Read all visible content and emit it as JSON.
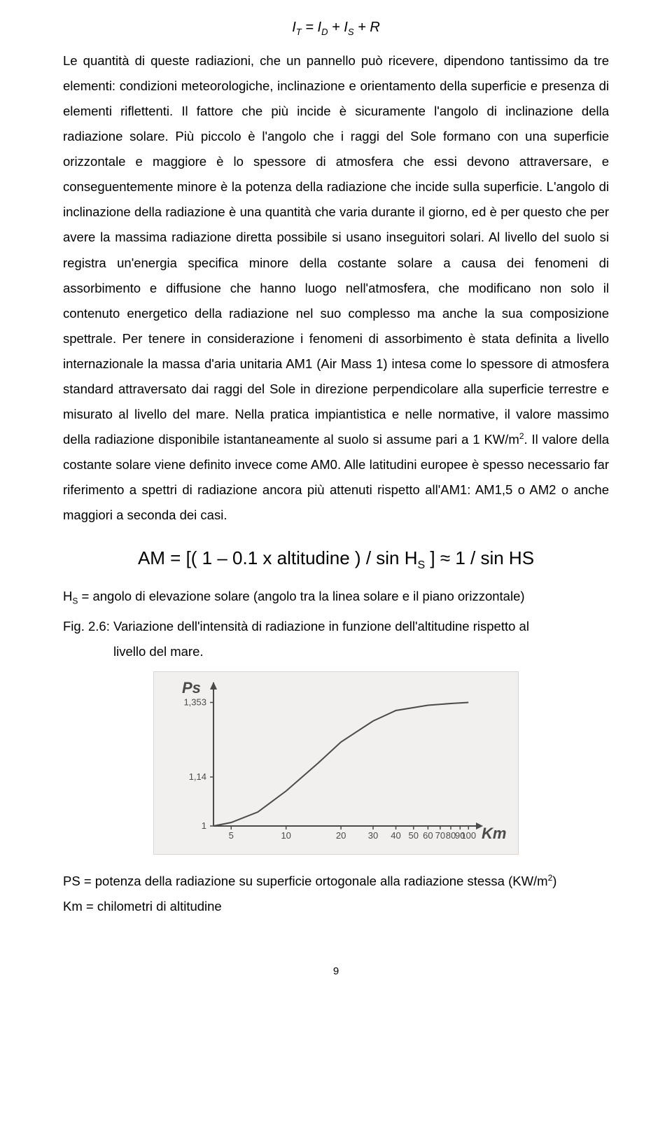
{
  "equation_top": {
    "lhs_sym": "I",
    "lhs_sub": "T",
    "eq": " = ",
    "t1_sym": "I",
    "t1_sub": "D",
    "plus1": " + ",
    "t2_sym": "I",
    "t2_sub": "S",
    "plus2": " + ",
    "t3": "R"
  },
  "paragraph": "Le quantità di queste radiazioni, che un pannello può ricevere, dipendono tantissimo da tre elementi: condizioni meteorologiche, inclinazione e orientamento della superficie e presenza di elementi riflettenti. Il fattore che più incide è sicuramente l'angolo di inclinazione della radiazione solare. Più piccolo è l'angolo che i raggi del Sole formano con una superficie orizzontale e maggiore è lo spessore di atmosfera che essi devono attraversare, e conseguentemente minore è la potenza della radiazione che incide sulla superficie. L'angolo di inclinazione della radiazione è una quantità che varia durante il giorno,  ed è per questo che per avere la massima radiazione diretta possibile si usano inseguitori solari. Al livello del suolo si registra un'energia specifica minore della costante solare a causa dei fenomeni di assorbimento e diffusione che hanno luogo nell'atmosfera, che modificano non solo il contenuto energetico della radiazione nel suo complesso ma anche la sua composizione spettrale. Per tenere in considerazione i fenomeni di assorbimento è stata definita a livello internazionale la massa d'aria unitaria AM1 (Air Mass 1) intesa come lo spessore di atmosfera standard attraversato dai raggi del Sole in direzione perpendicolare alla superficie terrestre e misurato al livello del mare. Nella pratica impiantistica e nelle normative, il valore massimo della radiazione disponibile istantaneamente al suolo si assume pari a 1 KW/m",
  "paragraph_after_sup": ". Il valore della costante solare viene definito invece come AM0. Alle latitudini europee è spesso necessario far riferimento a spettri di radiazione ancora più attenuti rispetto all'AM1: AM1,5 o AM2 o anche maggiori a seconda dei casi.",
  "sup2": "2",
  "am_equation": {
    "pre": "AM = [( 1 – 0.1 x altitudine ) / sin H",
    "sub": "S",
    "post": " ]  ≈ 1 / sin HS"
  },
  "hs_def": {
    "pre": "H",
    "sub": "S",
    "post": " = angolo di elevazione solare (angolo tra la linea solare e il piano orizzontale)"
  },
  "fig_caption_line1": "Fig. 2.6: Variazione dell'intensità di radiazione in funzione dell'altitudine rispetto al",
  "fig_caption_line2": "livello del mare.",
  "chart": {
    "type": "line",
    "x_scale": "log",
    "y_label": "Ps",
    "x_label": "Km",
    "y_ticks": [
      {
        "v": 1,
        "label": "1"
      },
      {
        "v": 1.14,
        "label": "1,14"
      },
      {
        "v": 1.353,
        "label": "1,353"
      }
    ],
    "x_ticks": [
      {
        "v": 5,
        "label": "5"
      },
      {
        "v": 10,
        "label": "10"
      },
      {
        "v": 20,
        "label": "20"
      },
      {
        "v": 30,
        "label": "30"
      },
      {
        "v": 40,
        "label": "40"
      },
      {
        "v": 50,
        "label": "50"
      },
      {
        "v": 60,
        "label": "60"
      },
      {
        "v": 70,
        "label": "70"
      },
      {
        "v": 80,
        "label": "80"
      },
      {
        "v": 90,
        "label": "90"
      },
      {
        "v": 100,
        "label": "100"
      }
    ],
    "series": [
      {
        "x": 4,
        "y": 1.0
      },
      {
        "x": 5,
        "y": 1.01
      },
      {
        "x": 7,
        "y": 1.04
      },
      {
        "x": 10,
        "y": 1.1
      },
      {
        "x": 15,
        "y": 1.18
      },
      {
        "x": 20,
        "y": 1.24
      },
      {
        "x": 30,
        "y": 1.3
      },
      {
        "x": 40,
        "y": 1.33
      },
      {
        "x": 60,
        "y": 1.345
      },
      {
        "x": 80,
        "y": 1.35
      },
      {
        "x": 100,
        "y": 1.353
      }
    ],
    "colors": {
      "background": "#f2f0ee",
      "axis": "#4a4a4a",
      "curve": "#4a4a4a",
      "text": "#4a4a4a"
    },
    "font_size_axis_label": 22,
    "font_size_ticks": 13,
    "line_width": 2
  },
  "ps_def": {
    "pre": "PS = potenza della radiazione su superficie ortogonale alla radiazione stessa (KW/m",
    "sup": "2",
    "post": ")"
  },
  "km_def": "Km = chilometri di altitudine",
  "page_number": "9"
}
